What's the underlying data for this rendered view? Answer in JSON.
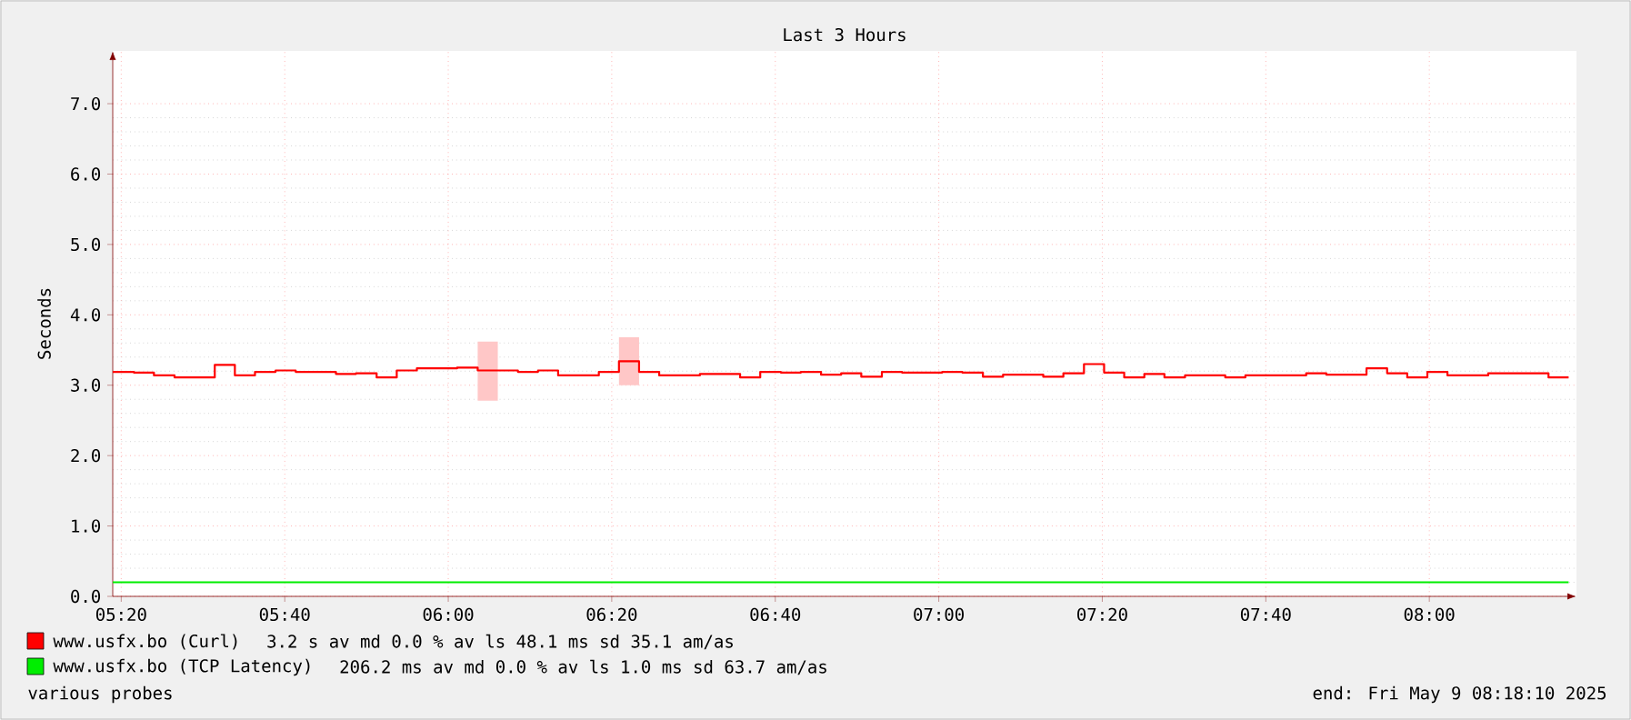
{
  "chart_data": {
    "type": "step",
    "title": "Last 3 Hours",
    "ylabel": "Seconds",
    "series": [
      {
        "name": "www.usfx.bo (Curl)",
        "color": "#ff0000",
        "x": [
          5.316,
          5.359,
          5.4,
          5.442,
          5.483,
          5.524,
          5.565,
          5.606,
          5.648,
          5.689,
          5.73,
          5.771,
          5.812,
          5.854,
          5.895,
          5.936,
          5.977,
          6.018,
          6.06,
          6.101,
          6.142,
          6.183,
          6.224,
          6.266,
          6.307,
          6.348,
          6.389,
          6.43,
          6.472,
          6.513,
          6.554,
          6.595,
          6.636,
          6.678,
          6.719,
          6.76,
          6.801,
          6.842,
          6.884,
          6.925,
          6.966,
          7.007,
          7.048,
          7.09,
          7.131,
          7.172,
          7.213,
          7.254,
          7.296,
          7.337,
          7.378,
          7.419,
          7.46,
          7.502,
          7.543,
          7.584,
          7.625,
          7.666,
          7.708,
          7.749,
          7.79,
          7.831,
          7.872,
          7.914,
          7.955,
          7.996,
          8.037,
          8.078,
          8.12,
          8.161,
          8.202,
          8.243,
          8.284
        ],
        "values": [
          3.19,
          3.18,
          3.14,
          3.11,
          3.11,
          3.29,
          3.14,
          3.19,
          3.21,
          3.19,
          3.19,
          3.16,
          3.17,
          3.11,
          3.21,
          3.24,
          3.24,
          3.25,
          3.21,
          3.21,
          3.19,
          3.21,
          3.14,
          3.14,
          3.19,
          3.34,
          3.19,
          3.14,
          3.14,
          3.16,
          3.16,
          3.11,
          3.19,
          3.18,
          3.19,
          3.15,
          3.17,
          3.12,
          3.19,
          3.18,
          3.18,
          3.19,
          3.18,
          3.12,
          3.15,
          3.15,
          3.12,
          3.17,
          3.3,
          3.18,
          3.11,
          3.16,
          3.11,
          3.14,
          3.14,
          3.11,
          3.14,
          3.14,
          3.14,
          3.17,
          3.15,
          3.15,
          3.24,
          3.17,
          3.11,
          3.19,
          3.14,
          3.14,
          3.17,
          3.17,
          3.17,
          3.11,
          3.11
        ],
        "lower": [
          null,
          null,
          null,
          null,
          null,
          null,
          null,
          null,
          null,
          null,
          null,
          null,
          null,
          null,
          null,
          null,
          null,
          null,
          2.78,
          2.78,
          null,
          null,
          null,
          null,
          null,
          3.0,
          3.0,
          null,
          null,
          null,
          null,
          null,
          null,
          null,
          null,
          null,
          null,
          null,
          null,
          null,
          null,
          null,
          null,
          null,
          null,
          null,
          null,
          null,
          null,
          null,
          null,
          null,
          null,
          null,
          null,
          null,
          null,
          null,
          null,
          null,
          null,
          null,
          null,
          null,
          null,
          null,
          null,
          null,
          null,
          null,
          null,
          null,
          null
        ],
        "upper": [
          null,
          null,
          null,
          null,
          null,
          null,
          null,
          null,
          null,
          null,
          null,
          null,
          null,
          null,
          null,
          null,
          null,
          null,
          3.62,
          3.62,
          null,
          null,
          null,
          null,
          null,
          3.68,
          3.68,
          null,
          null,
          null,
          null,
          null,
          null,
          null,
          null,
          null,
          null,
          null,
          null,
          null,
          null,
          null,
          null,
          null,
          null,
          null,
          null,
          null,
          null,
          null,
          null,
          null,
          null,
          null,
          null,
          null,
          null,
          null,
          null,
          null,
          null,
          null,
          null,
          null,
          null,
          null,
          null,
          null,
          null,
          null,
          null,
          null,
          null
        ]
      },
      {
        "name": "www.usfx.bo (TCP Latency)",
        "color": "#00ee00",
        "type": "line",
        "x": [
          5.316,
          8.284
        ],
        "values": [
          0.2,
          0.2
        ]
      }
    ],
    "xlim": [
      5.316,
      8.3
    ],
    "ylim": [
      0,
      7.75
    ],
    "xticks": [
      {
        "value": 5.3333,
        "label": "05:20"
      },
      {
        "value": 5.6667,
        "label": "05:40"
      },
      {
        "value": 6,
        "label": "06:00"
      },
      {
        "value": 6.3333,
        "label": "06:20"
      },
      {
        "value": 6.6667,
        "label": "06:40"
      },
      {
        "value": 7,
        "label": "07:00"
      },
      {
        "value": 7.3333,
        "label": "07:20"
      },
      {
        "value": 7.6667,
        "label": "07:40"
      },
      {
        "value": 8,
        "label": "08:00"
      }
    ],
    "yticks": [
      {
        "value": 0,
        "label": "0.0"
      },
      {
        "value": 1,
        "label": "1.0"
      },
      {
        "value": 2,
        "label": "2.0"
      },
      {
        "value": 3,
        "label": "3.0"
      },
      {
        "value": 4,
        "label": "4.0"
      },
      {
        "value": 5,
        "label": "5.0"
      },
      {
        "value": 6,
        "label": "6.0"
      },
      {
        "value": 7,
        "label": "7.0"
      }
    ],
    "grid": true,
    "legend": "bottom left",
    "annotations": [
      "3.2  s av md    0.0 % av ls   48.1 ms sd   35.1   am/as",
      "206.2 ms av md     0.0 % av ls    1.0 ms sd   63.7   am/as",
      "various probes",
      "end: Fri May  9 08:18:10 2025"
    ]
  }
}
